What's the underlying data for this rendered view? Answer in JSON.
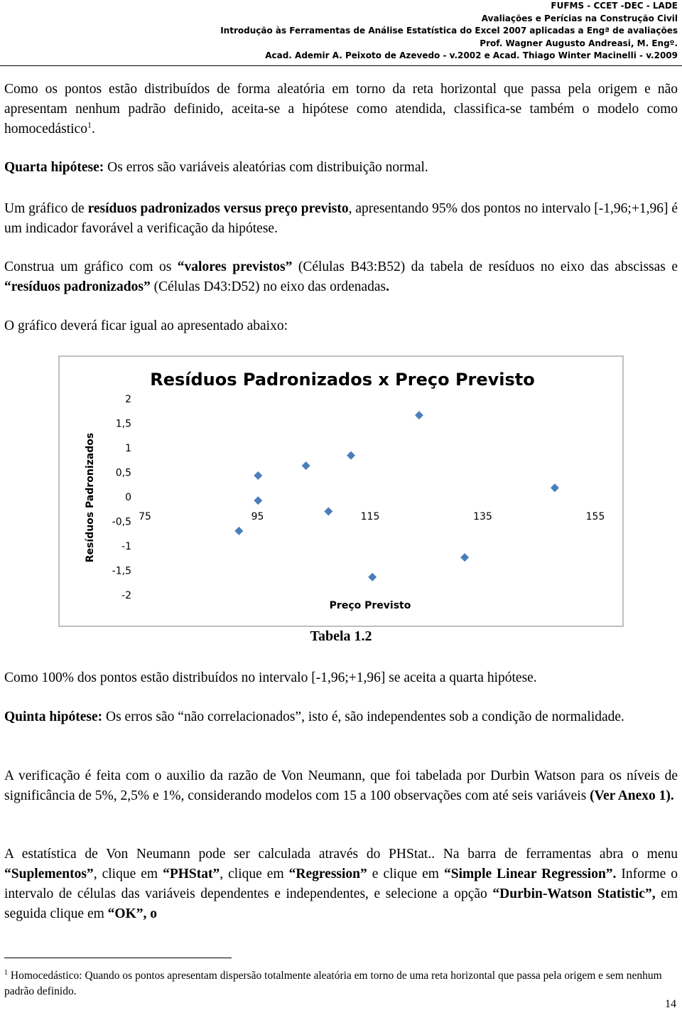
{
  "header": {
    "lines": [
      "FUFMS - CCET -DEC - LADE",
      "Avaliações e Perícias na Construção Civil",
      "Introdução às Ferramentas de Análise Estatística do Excel 2007 aplicadas a Engª de avaliações",
      "Prof. Wagner Augusto Andreasi, M. Engº.",
      "Acad. Ademir A. Peixoto de Azevedo - v.2002 e Acad. Thiago Winter Macinelli - v.2009"
    ]
  },
  "paragraphs": [
    {
      "runs": [
        {
          "text": "Como os pontos estão distribuídos de forma aleatória em torno da reta horizontal que passa pela origem e não apresentam nenhum padrão definido, aceita-se a hipótese como atendida, classifica-se também o modelo como homocedástico"
        },
        {
          "text": "1",
          "sup": true
        },
        {
          "text": "."
        }
      ]
    },
    {
      "runs": [
        {
          "text": "Quarta hipótese:",
          "bold": true
        },
        {
          "text": " Os erros são variáveis aleatórias com distribuição normal."
        }
      ]
    },
    {
      "runs": [
        {
          "text": "Um gráfico de "
        },
        {
          "text": "resíduos padronizados versus preço previsto",
          "bold": true
        },
        {
          "text": ", apresentando 95% dos pontos no intervalo [-1,96;+1,96] é um indicador favorável a verificação da hipótese."
        }
      ]
    },
    {
      "runs": [
        {
          "text": "Construa um gráfico com os "
        },
        {
          "text": "“valores previstos”",
          "bold": true
        },
        {
          "text": " (Células B43:B52) da tabela de resíduos no eixo das abscissas e "
        },
        {
          "text": "“resíduos padronizados”",
          "bold": true
        },
        {
          "text": " (Células D43:D52) no eixo das ordenadas"
        },
        {
          "text": ".",
          "bold": true
        }
      ]
    },
    {
      "runs": [
        {
          "text": "O gráfico deverá ficar igual ao apresentado abaixo:"
        }
      ]
    },
    {
      "runs": [
        {
          "text": "Como 100% dos pontos estão distribuídos no intervalo [-1,96;+1,96] se aceita a quarta hipótese."
        }
      ]
    },
    {
      "runs": [
        {
          "text": "Quinta hipótese:",
          "bold": true
        },
        {
          "text": " Os erros são “não correlacionados”, isto é, são independentes sob a condição de normalidade."
        }
      ]
    },
    {
      "runs": [
        {
          "text": "A verificação é feita com o auxilio da razão de Von Neumann, que foi tabelada por Durbin Watson para os níveis de significância de 5%, 2,5% e 1%, considerando modelos com 15 a 100 observações com até seis variáveis "
        },
        {
          "text": "(Ver Anexo 1).",
          "bold": true
        }
      ]
    },
    {
      "runs": [
        {
          "text": "A estatística de Von Neumann pode ser calculada através do PHStat.. Na barra de ferramentas abra o menu "
        },
        {
          "text": "“Suplementos”",
          "bold": true
        },
        {
          "text": ", clique em "
        },
        {
          "text": "“PHStat”",
          "bold": true
        },
        {
          "text": ", clique em "
        },
        {
          "text": "“Regression”",
          "bold": true
        },
        {
          "text": " e clique em "
        },
        {
          "text": "“Simple Linear Regression”.",
          "bold": true
        },
        {
          "text": " Informe o intervalo de células das variáveis dependentes e independentes, e selecione a opção "
        },
        {
          "text": "“Durbin-Watson Statistic”,",
          "bold": true
        },
        {
          "text": " em seguida clique em "
        },
        {
          "text": "“OK”, o",
          "bold": true
        }
      ]
    }
  ],
  "chart_data": {
    "type": "scatter",
    "title": "Resíduos Padronizados x Preço Previsto",
    "x_label": "Preço Previsto",
    "y_label": "Resíduos Padronizados",
    "x": [
      91.7,
      95.1,
      95.1,
      103.6,
      107.6,
      111.6,
      115.4,
      123.7,
      131.8,
      147.8
    ],
    "values": [
      -0.68,
      -0.06,
      0.45,
      0.65,
      -0.28,
      0.86,
      -1.62,
      1.68,
      -1.22,
      0.2
    ],
    "color": "#4a7ebb",
    "xlim": [
      75,
      155
    ],
    "xticks": [
      75,
      95,
      115,
      135,
      155
    ],
    "ylim": [
      -2,
      2
    ],
    "yticks": [
      2,
      {
        "value": 1.5,
        "label": "1,5"
      },
      1,
      {
        "value": 0.5,
        "label": "0,5"
      },
      0,
      {
        "value": -0.5,
        "label": "-0,5"
      },
      -1,
      {
        "value": -1.5,
        "label": "-1,5"
      },
      -2
    ]
  },
  "caption": "Tabela 1.2",
  "footnote": {
    "runs": [
      {
        "text": "1",
        "sup": true
      },
      {
        "text": " Homocedástico: Quando os pontos apresentam dispersão totalmente aleatória em torno de uma reta horizontal que passa pela origem e sem nenhum padrão definido."
      }
    ]
  },
  "page_number": "14"
}
